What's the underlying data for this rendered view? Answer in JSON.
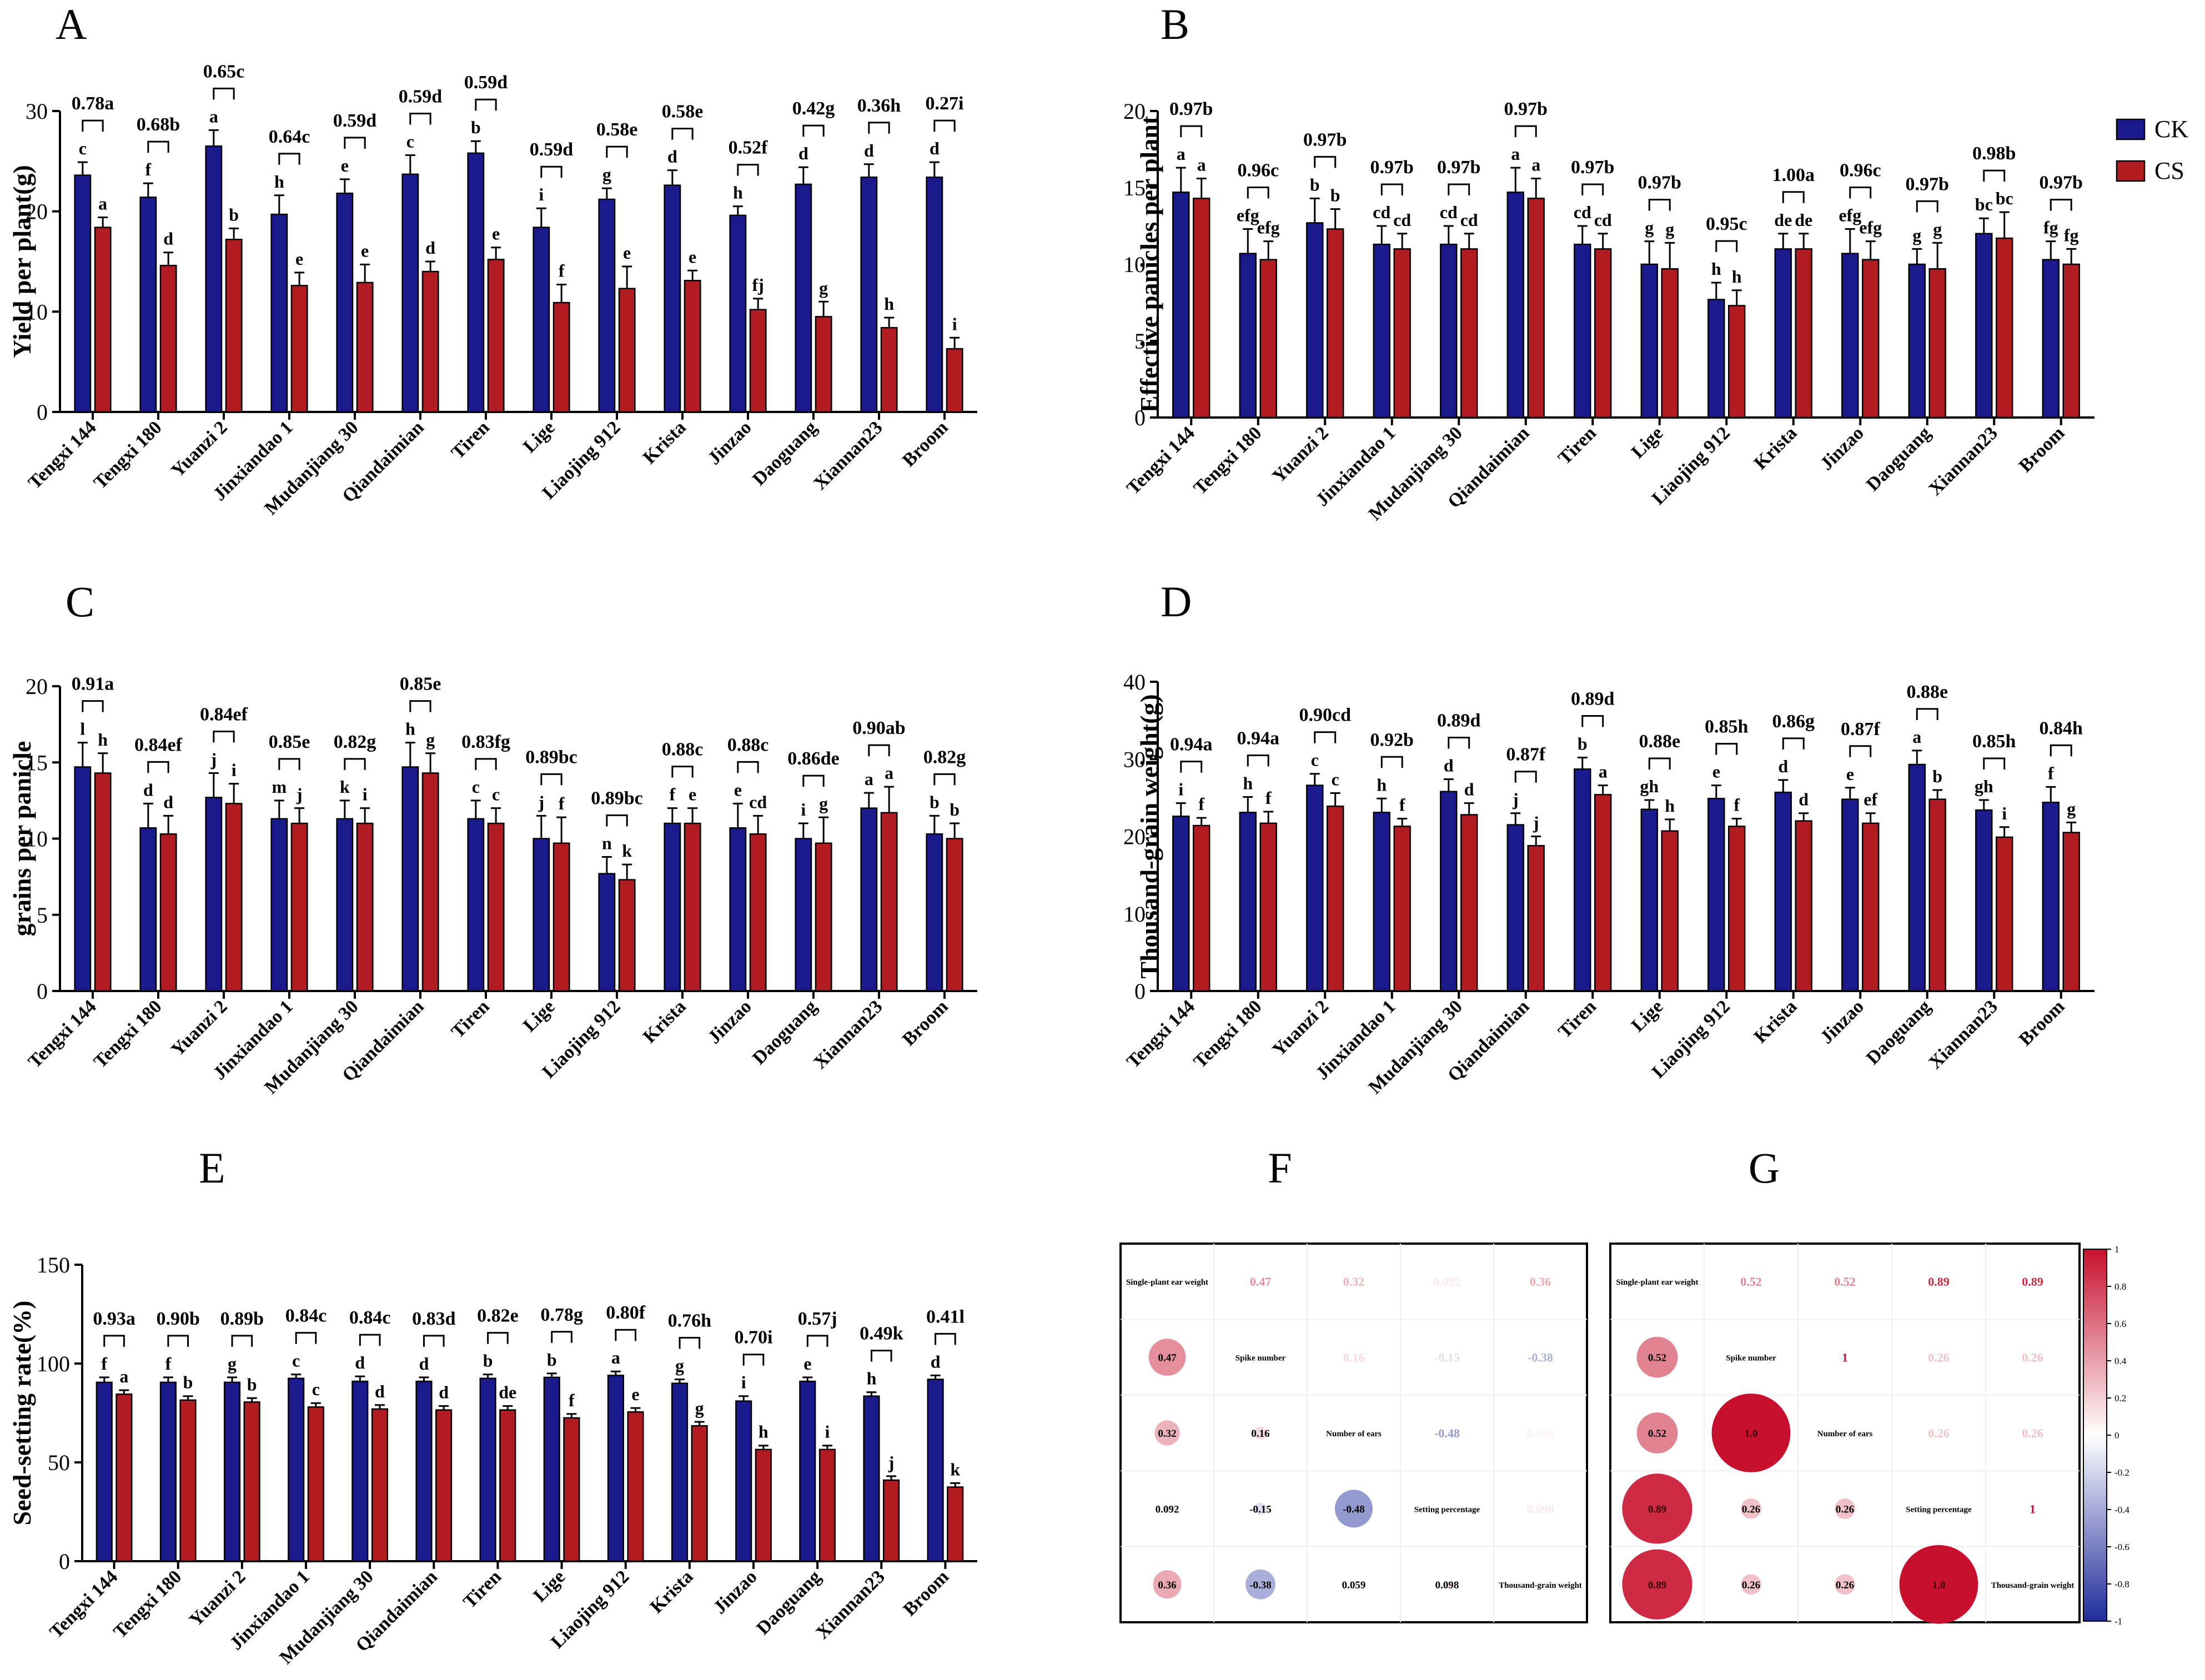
{
  "colors": {
    "ck": "#1a1a8c",
    "cs": "#b01c22",
    "positive": "#c8102e",
    "negative": "#1f2c9b",
    "axis": "#000000"
  },
  "legend": {
    "ck": "CK",
    "cs": "CS"
  },
  "varieties": [
    "Tengxi 144",
    "Tengxi 180",
    "Yuanzi 2",
    "Jinxiandao 1",
    "Mudanjiang 30",
    "Qiandaimian",
    "Tiren",
    "Lige",
    "Liaojing 912",
    "Krista",
    "Jinzao",
    "Daoguang",
    "Xiannan23",
    "Broom"
  ],
  "chart_data": [
    {
      "panel": "A",
      "type": "bar",
      "ylabel": "Yield per plant(g)",
      "ylim": [
        0,
        30
      ],
      "yticks": [
        0,
        10,
        20,
        30
      ],
      "series": [
        {
          "name": "CK",
          "values": [
            23.6,
            21.4,
            26.5,
            19.7,
            21.8,
            23.7,
            25.8,
            18.4,
            21.2,
            22.6,
            19.6,
            22.7,
            23.4,
            23.4
          ],
          "errors": [
            1.3,
            1.4,
            1.6,
            1.9,
            1.4,
            1.9,
            1.2,
            1.9,
            1.1,
            1.5,
            0.9,
            1.7,
            1.3,
            1.5
          ],
          "letters": [
            "c",
            "f",
            "a",
            "h",
            "e",
            "c",
            "b",
            "i",
            "g",
            "d",
            "h",
            "d",
            "d",
            "d"
          ]
        },
        {
          "name": "CS",
          "values": [
            18.4,
            14.6,
            17.2,
            12.6,
            12.9,
            14.0,
            15.2,
            10.9,
            12.3,
            13.1,
            10.2,
            9.5,
            8.4,
            6.3
          ],
          "errors": [
            1.0,
            1.3,
            1.1,
            1.3,
            1.8,
            1.0,
            1.2,
            1.8,
            2.2,
            1.0,
            1.1,
            1.5,
            1.0,
            1.1
          ],
          "letters": [
            "a",
            "d",
            "b",
            "e",
            "e",
            "d",
            "e",
            "f",
            "e",
            "e",
            "fj",
            "g",
            "h",
            "i"
          ]
        }
      ],
      "ratios": [
        "0.78a",
        "0.68b",
        "0.65c",
        "0.64c",
        "0.59d",
        "0.59d",
        "0.59d",
        "0.59d",
        "0.58e",
        "0.58e",
        "0.52f",
        "0.42g",
        "0.36h",
        "0.27i"
      ]
    },
    {
      "panel": "B",
      "type": "bar",
      "ylabel": "Effective panicles per plant",
      "ylim": [
        0,
        20
      ],
      "yticks": [
        0,
        5,
        10,
        15,
        20
      ],
      "series": [
        {
          "name": "CK",
          "values": [
            14.7,
            10.7,
            12.7,
            11.3,
            11.3,
            14.7,
            11.3,
            10.0,
            7.7,
            11.0,
            10.7,
            10.0,
            12.0,
            10.3
          ],
          "errors": [
            1.6,
            1.6,
            1.6,
            1.2,
            1.2,
            1.6,
            1.2,
            1.5,
            1.1,
            1.0,
            1.6,
            1.0,
            1.0,
            1.2
          ],
          "letters": [
            "a",
            "efg",
            "b",
            "cd",
            "cd",
            "a",
            "cd",
            "g",
            "h",
            "de",
            "efg",
            "g",
            "bc",
            "fg"
          ]
        },
        {
          "name": "CS",
          "values": [
            14.3,
            10.3,
            12.3,
            11.0,
            11.0,
            14.3,
            11.0,
            9.7,
            7.3,
            11.0,
            10.3,
            9.7,
            11.7,
            10.0
          ],
          "errors": [
            1.3,
            1.2,
            1.3,
            1.0,
            1.0,
            1.3,
            1.0,
            1.7,
            1.0,
            1.0,
            1.2,
            1.7,
            1.7,
            1.0
          ],
          "letters": [
            "a",
            "efg",
            "b",
            "cd",
            "cd",
            "a",
            "cd",
            "g",
            "h",
            "de",
            "efg",
            "g",
            "bc",
            "fg"
          ]
        }
      ],
      "ratios": [
        "0.97b",
        "0.96c",
        "0.97b",
        "0.97b",
        "0.97b",
        "0.97b",
        "0.97b",
        "0.97b",
        "0.95c",
        "1.00a",
        "0.96c",
        "0.97b",
        "0.98b",
        "0.97b"
      ]
    },
    {
      "panel": "C",
      "type": "bar",
      "ylabel": "grains per panicle",
      "ylim": [
        0,
        20
      ],
      "yticks": [
        0,
        5,
        10,
        15,
        20
      ],
      "series": [
        {
          "name": "CK",
          "values": [
            14.7,
            10.7,
            12.7,
            11.3,
            11.3,
            14.7,
            11.3,
            10.0,
            7.7,
            11.0,
            10.7,
            10.0,
            12.0,
            10.3
          ],
          "errors": [
            1.6,
            1.6,
            1.6,
            1.2,
            1.2,
            1.6,
            1.2,
            1.5,
            1.1,
            1.0,
            1.6,
            1.0,
            1.0,
            1.2
          ],
          "letters": [
            "l",
            "d",
            "j",
            "m",
            "k",
            "h",
            "c",
            "j",
            "n",
            "f",
            "e",
            "i",
            "a",
            "b"
          ]
        },
        {
          "name": "CS",
          "values": [
            14.3,
            10.3,
            12.3,
            11.0,
            11.0,
            14.3,
            11.0,
            9.7,
            7.3,
            11.0,
            10.3,
            9.7,
            11.7,
            10.0
          ],
          "errors": [
            1.3,
            1.2,
            1.3,
            1.0,
            1.0,
            1.3,
            1.0,
            1.7,
            1.0,
            1.0,
            1.2,
            1.7,
            1.7,
            1.0
          ],
          "letters": [
            "h",
            "d",
            "i",
            "j",
            "i",
            "g",
            "c",
            "f",
            "k",
            "e",
            "cd",
            "g",
            "a",
            "b"
          ]
        }
      ],
      "ratios": [
        "0.91a",
        "0.84ef",
        "0.84ef",
        "0.85e",
        "0.82g",
        "0.85e",
        "0.83fg",
        "0.89bc",
        "0.89bc",
        "0.88c",
        "0.88c",
        "0.86de",
        "0.90ab",
        "0.82g"
      ]
    },
    {
      "panel": "D",
      "type": "bar",
      "ylabel": "Thousand-grain weight(g)",
      "ylim": [
        0,
        40
      ],
      "yticks": [
        0,
        10,
        20,
        30,
        40
      ],
      "series": [
        {
          "name": "CK",
          "values": [
            22.6,
            23.1,
            26.6,
            23.1,
            25.8,
            21.5,
            28.7,
            23.5,
            24.9,
            25.7,
            24.8,
            29.3,
            23.4,
            24.4
          ],
          "errors": [
            1.7,
            2.0,
            1.5,
            1.8,
            1.6,
            1.5,
            1.5,
            1.2,
            1.7,
            1.6,
            1.5,
            1.8,
            1.3,
            2.0
          ],
          "letters": [
            "i",
            "h",
            "c",
            "h",
            "d",
            "j",
            "b",
            "gh",
            "e",
            "d",
            "e",
            "a",
            "gh",
            "f"
          ]
        },
        {
          "name": "CS",
          "values": [
            21.4,
            21.7,
            23.9,
            21.3,
            22.8,
            18.8,
            25.4,
            20.7,
            21.3,
            22.0,
            21.7,
            24.8,
            19.9,
            20.5
          ],
          "errors": [
            1.0,
            1.5,
            1.7,
            1.0,
            1.5,
            1.2,
            1.2,
            1.5,
            1.0,
            1.0,
            1.3,
            1.2,
            1.3,
            1.3
          ],
          "letters": [
            "f",
            "f",
            "c",
            "f",
            "d",
            "j",
            "a",
            "h",
            "f",
            "d",
            "ef",
            "b",
            "i",
            "g"
          ]
        }
      ],
      "ratios": [
        "0.94a",
        "0.94a",
        "0.90cd",
        "0.92b",
        "0.89d",
        "0.87f",
        "0.89d",
        "0.88e",
        "0.85h",
        "0.86g",
        "0.87f",
        "0.88e",
        "0.85h",
        "0.84h"
      ]
    },
    {
      "panel": "E",
      "type": "bar",
      "ylabel": "Seed-setting rate(%)",
      "ylim": [
        0,
        150
      ],
      "yticks": [
        0,
        50,
        100,
        150
      ],
      "series": [
        {
          "name": "CK",
          "values": [
            90.5,
            90.5,
            90.5,
            92.5,
            91.0,
            91.0,
            92.5,
            93.0,
            94.0,
            90.0,
            81.0,
            91.0,
            83.5,
            92.0
          ],
          "errors": [
            2.5,
            2.5,
            2.5,
            2.0,
            2.5,
            2.0,
            2.0,
            2.0,
            2.0,
            2.0,
            2.5,
            2.0,
            2.0,
            2.0
          ],
          "letters": [
            "f",
            "f",
            "g",
            "c",
            "d",
            "d",
            "b",
            "b",
            "a",
            "g",
            "i",
            "e",
            "h",
            "d"
          ]
        },
        {
          "name": "CS",
          "values": [
            84.5,
            81.5,
            80.5,
            78.0,
            77.0,
            76.5,
            76.5,
            72.5,
            75.5,
            68.5,
            56.5,
            56.5,
            41.0,
            37.5
          ],
          "errors": [
            2.0,
            2.0,
            2.0,
            2.0,
            2.0,
            2.0,
            2.0,
            2.0,
            2.0,
            2.0,
            2.0,
            2.0,
            2.0,
            2.0
          ],
          "letters": [
            "a",
            "b",
            "b",
            "c",
            "d",
            "d",
            "de",
            "f",
            "e",
            "g",
            "h",
            "i",
            "j",
            "k"
          ]
        }
      ],
      "ratios": [
        "0.93a",
        "0.90b",
        "0.89b",
        "0.84c",
        "0.84c",
        "0.83d",
        "0.82e",
        "0.78g",
        "0.80f",
        "0.76h",
        "0.70i",
        "0.57j",
        "0.49k",
        "0.41l"
      ]
    },
    {
      "panel": "F",
      "type": "heatmap",
      "colorscale": [
        -1,
        1
      ],
      "labels": [
        "Single-plant ear weight",
        "Spike number",
        "Number of ears",
        "Setting percentage",
        "Thousand-grain weight"
      ],
      "lower_text": [
        [
          "",
          "",
          "",
          "",
          ""
        ],
        [
          "0.47",
          "",
          "",
          "",
          ""
        ],
        [
          "0.32",
          "0.16",
          "",
          "",
          ""
        ],
        [
          "0.092",
          "-0.15",
          "-0.48",
          "",
          ""
        ],
        [
          "0.36",
          "-0.38",
          "0.059",
          "0.098",
          ""
        ]
      ],
      "matrix": [
        [
          1,
          0.47,
          0.32,
          0.092,
          0.36
        ],
        [
          0.47,
          1,
          0.16,
          -0.15,
          -0.38
        ],
        [
          0.32,
          0.16,
          1,
          -0.48,
          0.059
        ],
        [
          0.092,
          -0.15,
          -0.48,
          1,
          0.098
        ],
        [
          0.36,
          -0.38,
          0.059,
          0.098,
          1
        ]
      ]
    },
    {
      "panel": "G",
      "type": "heatmap",
      "colorscale": [
        -1,
        1
      ],
      "labels": [
        "Single-plant ear weight",
        "Spike number",
        "Number of ears",
        "Setting percentage",
        "Thousand-grain weight"
      ],
      "lower_text": [
        [
          "",
          "",
          "",
          "",
          ""
        ],
        [
          "0.52",
          "",
          "",
          "",
          ""
        ],
        [
          "0.52",
          "1.0",
          "",
          "",
          ""
        ],
        [
          "0.89",
          "0.26",
          "0.26",
          "",
          ""
        ],
        [
          "0.89",
          "0.26",
          "0.26",
          "1.0",
          ""
        ]
      ],
      "matrix": [
        [
          1,
          0.52,
          0.52,
          0.89,
          0.89
        ],
        [
          0.52,
          1,
          1.0,
          0.26,
          0.26
        ],
        [
          0.52,
          1.0,
          1,
          0.26,
          0.26
        ],
        [
          0.89,
          0.26,
          0.26,
          1,
          1.0
        ],
        [
          0.89,
          0.26,
          0.26,
          1.0,
          1
        ]
      ],
      "colorbar_ticks": [
        "1",
        "0.8",
        "0.6",
        "0.4",
        "0.2",
        "0",
        "-0.2",
        "-0.4",
        "-0.6",
        "-0.8",
        "-1"
      ]
    }
  ]
}
